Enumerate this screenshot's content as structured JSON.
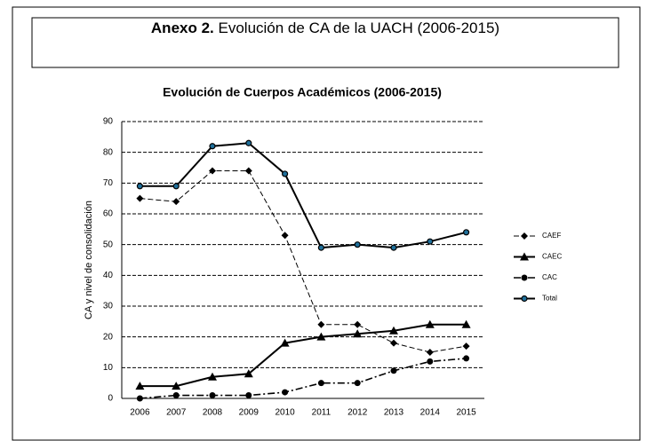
{
  "header": {
    "label": "Anexo 2.",
    "title": "Evolución de CA de la UACH (2006-2015)"
  },
  "chart_data": {
    "type": "line",
    "title": "Evolución de Cuerpos Académicos (2006-2015)",
    "y_label": "CA y nivel de consolidación",
    "categories": [
      "2006",
      "2007",
      "2008",
      "2009",
      "2010",
      "2011",
      "2012",
      "2013",
      "2014",
      "2015"
    ],
    "series": [
      {
        "name": "CAEF",
        "color": "#000000",
        "marker": "diamond",
        "dash": "dashed",
        "values": [
          65,
          64,
          74,
          74,
          53,
          24,
          24,
          18,
          15,
          17
        ]
      },
      {
        "name": "CAEC",
        "color": "#000000",
        "marker": "triangle",
        "dash": "solid",
        "values": [
          4,
          4,
          7,
          8,
          18,
          20,
          21,
          22,
          24,
          24
        ]
      },
      {
        "name": "CAC",
        "color": "#000000",
        "marker": "circle",
        "dash": "dashdot",
        "values": [
          0,
          1,
          1,
          1,
          2,
          5,
          5,
          9,
          12,
          13
        ]
      },
      {
        "name": "Total",
        "color": "#000000",
        "marker": "dot",
        "dash": "solid",
        "values": [
          69,
          69,
          82,
          83,
          73,
          49,
          50,
          49,
          51,
          54
        ]
      }
    ],
    "ylim": [
      0,
      90
    ],
    "yticks": [
      0,
      10,
      20,
      30,
      40,
      50,
      60,
      70,
      80,
      90
    ],
    "grid": true,
    "legend": "right"
  }
}
